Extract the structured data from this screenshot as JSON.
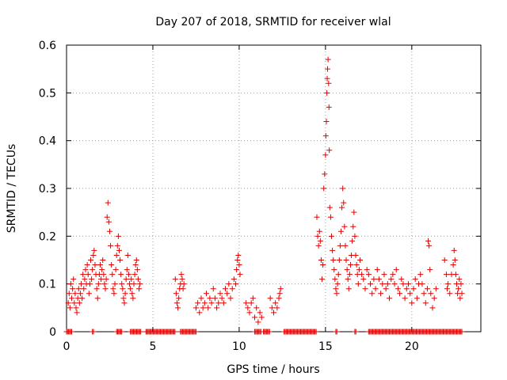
{
  "chart_data": {
    "type": "scatter",
    "title": "Day 207 of 2018, SRMTID for receiver wlal",
    "xlabel": "GPS time / hours",
    "ylabel": "SRMTID / TECUs",
    "xlim": [
      0,
      24
    ],
    "ylim": [
      0,
      0.6
    ],
    "grid": true,
    "marker": "+",
    "series_color": "#e60000",
    "xticks": [
      {
        "value": 0,
        "label": "0"
      },
      {
        "value": 5,
        "label": "5"
      },
      {
        "value": 10,
        "label": "10"
      },
      {
        "value": 15,
        "label": "15"
      },
      {
        "value": 20,
        "label": "20"
      }
    ],
    "yticks": [
      {
        "value": 0,
        "label": "0"
      },
      {
        "value": 0.1,
        "label": "0.1"
      },
      {
        "value": 0.2,
        "label": "0.2"
      },
      {
        "value": 0.3,
        "label": "0.3"
      },
      {
        "value": 0.4,
        "label": "0.4"
      },
      {
        "value": 0.5,
        "label": "0.5"
      },
      {
        "value": 0.6,
        "label": "0.6"
      }
    ],
    "series": [
      {
        "name": "SRMTID",
        "points": [
          [
            0.1,
            0.06
          ],
          [
            0.15,
            0.08
          ],
          [
            0.2,
            0.05
          ],
          [
            0.25,
            0.1
          ],
          [
            0.3,
            0.07
          ],
          [
            0.35,
            0.09
          ],
          [
            0.4,
            0.11
          ],
          [
            0.45,
            0.06
          ],
          [
            0.5,
            0.08
          ],
          [
            0.55,
            0.05
          ],
          [
            0.6,
            0.04
          ],
          [
            0.65,
            0.07
          ],
          [
            0.7,
            0.09
          ],
          [
            0.75,
            0.06
          ],
          [
            0.8,
            0.08
          ],
          [
            0.85,
            0.1
          ],
          [
            0.9,
            0.07
          ],
          [
            0.95,
            0.12
          ],
          [
            1.0,
            0.09
          ],
          [
            1.05,
            0.11
          ],
          [
            1.1,
            0.13
          ],
          [
            1.15,
            0.1
          ],
          [
            1.2,
            0.14
          ],
          [
            1.25,
            0.12
          ],
          [
            1.3,
            0.08
          ],
          [
            1.35,
            0.1
          ],
          [
            1.4,
            0.15
          ],
          [
            1.45,
            0.11
          ],
          [
            1.5,
            0.13
          ],
          [
            1.55,
            0.16
          ],
          [
            1.6,
            0.17
          ],
          [
            1.65,
            0.14
          ],
          [
            1.7,
            0.12
          ],
          [
            1.75,
            0.09
          ],
          [
            1.8,
            0.07
          ],
          [
            1.85,
            0.1
          ],
          [
            1.9,
            0.12
          ],
          [
            1.95,
            0.14
          ],
          [
            2.0,
            0.11
          ],
          [
            2.05,
            0.13
          ],
          [
            2.1,
            0.15
          ],
          [
            2.15,
            0.12
          ],
          [
            2.2,
            0.1
          ],
          [
            2.25,
            0.09
          ],
          [
            2.3,
            0.11
          ],
          [
            2.35,
            0.24
          ],
          [
            2.4,
            0.27
          ],
          [
            2.45,
            0.23
          ],
          [
            2.5,
            0.21
          ],
          [
            2.55,
            0.18
          ],
          [
            2.6,
            0.14
          ],
          [
            2.65,
            0.12
          ],
          [
            2.7,
            0.09
          ],
          [
            2.75,
            0.08
          ],
          [
            2.8,
            0.1
          ],
          [
            2.85,
            0.13
          ],
          [
            2.9,
            0.16
          ],
          [
            2.95,
            0.18
          ],
          [
            3.0,
            0.2
          ],
          [
            3.05,
            0.17
          ],
          [
            3.1,
            0.15
          ],
          [
            3.15,
            0.12
          ],
          [
            3.2,
            0.1
          ],
          [
            3.25,
            0.09
          ],
          [
            3.3,
            0.07
          ],
          [
            3.35,
            0.06
          ],
          [
            3.4,
            0.08
          ],
          [
            3.45,
            0.11
          ],
          [
            3.5,
            0.13
          ],
          [
            3.55,
            0.16
          ],
          [
            3.6,
            0.12
          ],
          [
            3.65,
            0.1
          ],
          [
            3.7,
            0.09
          ],
          [
            3.75,
            0.11
          ],
          [
            3.8,
            0.08
          ],
          [
            3.85,
            0.07
          ],
          [
            3.9,
            0.1
          ],
          [
            3.95,
            0.12
          ],
          [
            4.0,
            0.14
          ],
          [
            4.05,
            0.15
          ],
          [
            4.1,
            0.13
          ],
          [
            4.15,
            0.11
          ],
          [
            4.2,
            0.09
          ],
          [
            4.25,
            0.1
          ],
          [
            6.3,
            0.11
          ],
          [
            6.35,
            0.08
          ],
          [
            6.4,
            0.06
          ],
          [
            6.45,
            0.05
          ],
          [
            6.5,
            0.07
          ],
          [
            6.55,
            0.09
          ],
          [
            6.6,
            0.1
          ],
          [
            6.65,
            0.12
          ],
          [
            6.7,
            0.11
          ],
          [
            6.75,
            0.09
          ],
          [
            6.8,
            0.1
          ],
          [
            7.5,
            0.05
          ],
          [
            7.6,
            0.06
          ],
          [
            7.7,
            0.04
          ],
          [
            7.8,
            0.07
          ],
          [
            7.9,
            0.05
          ],
          [
            8.0,
            0.06
          ],
          [
            8.1,
            0.08
          ],
          [
            8.2,
            0.05
          ],
          [
            8.3,
            0.07
          ],
          [
            8.4,
            0.06
          ],
          [
            8.5,
            0.09
          ],
          [
            8.6,
            0.07
          ],
          [
            8.7,
            0.05
          ],
          [
            8.8,
            0.06
          ],
          [
            8.9,
            0.08
          ],
          [
            9.0,
            0.07
          ],
          [
            9.1,
            0.06
          ],
          [
            9.2,
            0.09
          ],
          [
            9.3,
            0.08
          ],
          [
            9.4,
            0.1
          ],
          [
            9.5,
            0.07
          ],
          [
            9.6,
            0.09
          ],
          [
            9.7,
            0.11
          ],
          [
            9.8,
            0.1
          ],
          [
            9.85,
            0.13
          ],
          [
            9.9,
            0.15
          ],
          [
            9.95,
            0.16
          ],
          [
            10.0,
            0.14
          ],
          [
            10.05,
            0.12
          ],
          [
            10.4,
            0.06
          ],
          [
            10.5,
            0.05
          ],
          [
            10.6,
            0.04
          ],
          [
            10.7,
            0.06
          ],
          [
            10.8,
            0.07
          ],
          [
            10.9,
            0.03
          ],
          [
            11.0,
            0.05
          ],
          [
            11.1,
            0.02
          ],
          [
            11.2,
            0.04
          ],
          [
            11.3,
            0.03
          ],
          [
            11.8,
            0.07
          ],
          [
            11.9,
            0.05
          ],
          [
            12.0,
            0.04
          ],
          [
            12.1,
            0.06
          ],
          [
            12.2,
            0.05
          ],
          [
            12.3,
            0.07
          ],
          [
            12.35,
            0.08
          ],
          [
            12.4,
            0.09
          ],
          [
            14.5,
            0.24
          ],
          [
            14.55,
            0.2
          ],
          [
            14.6,
            0.18
          ],
          [
            14.65,
            0.21
          ],
          [
            14.7,
            0.19
          ],
          [
            14.75,
            0.15
          ],
          [
            14.8,
            0.11
          ],
          [
            14.85,
            0.14
          ],
          [
            14.9,
            0.3
          ],
          [
            14.95,
            0.33
          ],
          [
            15.0,
            0.37
          ],
          [
            15.02,
            0.41
          ],
          [
            15.05,
            0.44
          ],
          [
            15.08,
            0.5
          ],
          [
            15.1,
            0.53
          ],
          [
            15.12,
            0.55
          ],
          [
            15.15,
            0.57
          ],
          [
            15.18,
            0.52
          ],
          [
            15.2,
            0.47
          ],
          [
            15.22,
            0.38
          ],
          [
            15.25,
            0.26
          ],
          [
            15.3,
            0.24
          ],
          [
            15.35,
            0.2
          ],
          [
            15.4,
            0.17
          ],
          [
            15.45,
            0.15
          ],
          [
            15.5,
            0.13
          ],
          [
            15.55,
            0.11
          ],
          [
            15.6,
            0.09
          ],
          [
            15.65,
            0.08
          ],
          [
            15.7,
            0.1
          ],
          [
            15.75,
            0.12
          ],
          [
            15.8,
            0.15
          ],
          [
            15.85,
            0.18
          ],
          [
            15.9,
            0.21
          ],
          [
            15.95,
            0.26
          ],
          [
            16.0,
            0.3
          ],
          [
            16.05,
            0.27
          ],
          [
            16.1,
            0.22
          ],
          [
            16.15,
            0.18
          ],
          [
            16.2,
            0.15
          ],
          [
            16.25,
            0.13
          ],
          [
            16.3,
            0.11
          ],
          [
            16.35,
            0.09
          ],
          [
            16.4,
            0.12
          ],
          [
            16.45,
            0.14
          ],
          [
            16.5,
            0.16
          ],
          [
            16.55,
            0.19
          ],
          [
            16.6,
            0.22
          ],
          [
            16.65,
            0.25
          ],
          [
            16.7,
            0.2
          ],
          [
            16.75,
            0.16
          ],
          [
            16.8,
            0.14
          ],
          [
            16.85,
            0.12
          ],
          [
            16.9,
            0.1
          ],
          [
            16.95,
            0.13
          ],
          [
            17.0,
            0.15
          ],
          [
            17.1,
            0.12
          ],
          [
            17.2,
            0.11
          ],
          [
            17.3,
            0.09
          ],
          [
            17.4,
            0.13
          ],
          [
            17.5,
            0.12
          ],
          [
            17.6,
            0.1
          ],
          [
            17.7,
            0.08
          ],
          [
            17.8,
            0.11
          ],
          [
            17.9,
            0.09
          ],
          [
            18.0,
            0.13
          ],
          [
            18.1,
            0.11
          ],
          [
            18.2,
            0.08
          ],
          [
            18.3,
            0.1
          ],
          [
            18.4,
            0.12
          ],
          [
            18.5,
            0.09
          ],
          [
            18.6,
            0.1
          ],
          [
            18.7,
            0.07
          ],
          [
            18.8,
            0.11
          ],
          [
            18.9,
            0.12
          ],
          [
            19.0,
            0.1
          ],
          [
            19.1,
            0.13
          ],
          [
            19.2,
            0.09
          ],
          [
            19.3,
            0.08
          ],
          [
            19.4,
            0.11
          ],
          [
            19.5,
            0.1
          ],
          [
            19.6,
            0.07
          ],
          [
            19.7,
            0.09
          ],
          [
            19.8,
            0.1
          ],
          [
            19.9,
            0.08
          ],
          [
            20.0,
            0.06
          ],
          [
            20.1,
            0.09
          ],
          [
            20.2,
            0.11
          ],
          [
            20.3,
            0.07
          ],
          [
            20.4,
            0.1
          ],
          [
            20.5,
            0.12
          ],
          [
            20.6,
            0.1
          ],
          [
            20.7,
            0.08
          ],
          [
            20.8,
            0.06
          ],
          [
            20.9,
            0.09
          ],
          [
            20.95,
            0.19
          ],
          [
            21.0,
            0.18
          ],
          [
            21.05,
            0.13
          ],
          [
            21.1,
            0.08
          ],
          [
            21.2,
            0.05
          ],
          [
            21.3,
            0.07
          ],
          [
            21.4,
            0.09
          ],
          [
            21.9,
            0.15
          ],
          [
            22.0,
            0.12
          ],
          [
            22.05,
            0.09
          ],
          [
            22.1,
            0.1
          ],
          [
            22.2,
            0.08
          ],
          [
            22.3,
            0.12
          ],
          [
            22.4,
            0.14
          ],
          [
            22.45,
            0.17
          ],
          [
            22.5,
            0.15
          ],
          [
            22.55,
            0.12
          ],
          [
            22.6,
            0.1
          ],
          [
            22.65,
            0.08
          ],
          [
            22.7,
            0.09
          ],
          [
            22.75,
            0.11
          ],
          [
            22.8,
            0.07
          ],
          [
            22.85,
            0.1
          ],
          [
            22.9,
            0.08
          ]
        ]
      }
    ],
    "zero_band": [
      [
        0.0,
        0.3
      ],
      [
        1.5,
        1.6
      ],
      [
        2.9,
        3.2
      ],
      [
        3.7,
        4.3
      ],
      [
        4.6,
        6.3
      ],
      [
        6.6,
        7.5
      ],
      [
        10.9,
        11.3
      ],
      [
        11.4,
        11.8
      ],
      [
        12.6,
        14.5
      ],
      [
        15.6,
        15.7
      ],
      [
        16.7,
        16.8
      ],
      [
        17.5,
        22.9
      ]
    ]
  }
}
